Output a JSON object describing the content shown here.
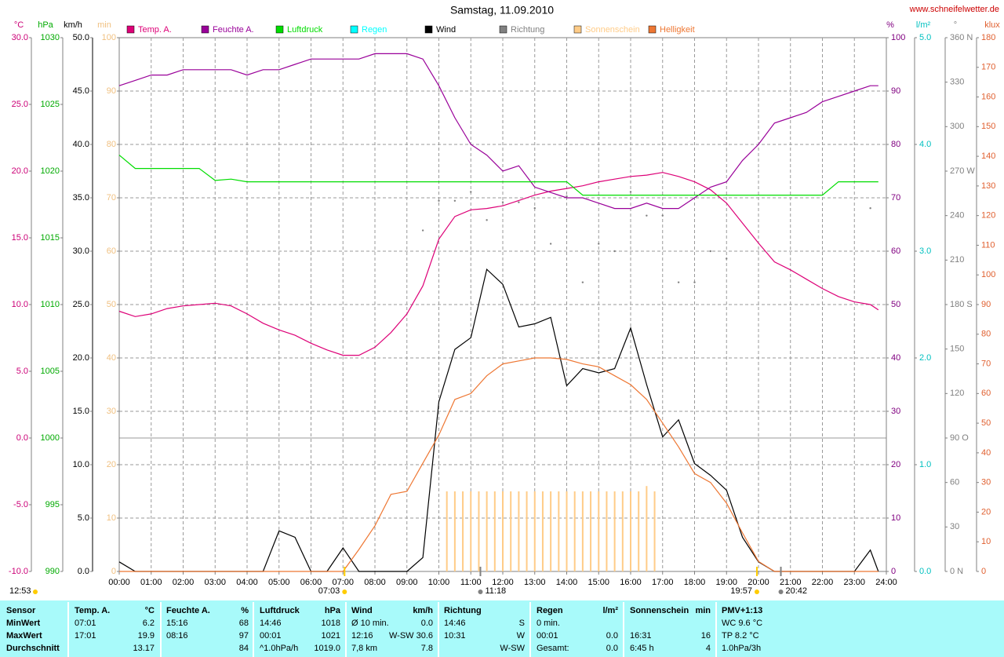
{
  "chart_data": {
    "type": "line",
    "title": "Samstag, 11.09.2010",
    "source": "www.schneifelwetter.de",
    "day_length": "12:53",
    "grid": true,
    "grid_axis": "%",
    "xlim": [
      0,
      24
    ],
    "xticks": [
      {
        "value": 0,
        "label": "00:00"
      },
      {
        "value": 1,
        "label": "01:00"
      },
      {
        "value": 2,
        "label": "02:00"
      },
      {
        "value": 3,
        "label": "03:00"
      },
      {
        "value": 4,
        "label": "04:00"
      },
      {
        "value": 5,
        "label": "05:00"
      },
      {
        "value": 6,
        "label": "06:00"
      },
      {
        "value": 7,
        "label": "07:00"
      },
      {
        "value": 8,
        "label": "08:00"
      },
      {
        "value": 9,
        "label": "09:00"
      },
      {
        "value": 10,
        "label": "10:00"
      },
      {
        "value": 11,
        "label": "11:00"
      },
      {
        "value": 12,
        "label": "12:00"
      },
      {
        "value": 13,
        "label": "13:00"
      },
      {
        "value": 14,
        "label": "14:00"
      },
      {
        "value": 15,
        "label": "15:00"
      },
      {
        "value": 16,
        "label": "16:00"
      },
      {
        "value": 17,
        "label": "17:00"
      },
      {
        "value": 18,
        "label": "18:00"
      },
      {
        "value": 19,
        "label": "19:00"
      },
      {
        "value": 20,
        "label": "20:00"
      },
      {
        "value": 21,
        "label": "21:00"
      },
      {
        "value": 22,
        "label": "22:00"
      },
      {
        "value": 23,
        "label": "23:00"
      },
      {
        "value": 24,
        "label": "24:00"
      }
    ],
    "axes": [
      {
        "unit": "°C",
        "color": "#cc0077",
        "lim": [
          -10,
          30
        ],
        "ticks": [
          {
            "value": -10,
            "label": "-10.0"
          },
          {
            "value": -5,
            "label": "-5.0"
          },
          {
            "value": 0,
            "label": "0.0"
          },
          {
            "value": 5,
            "label": "5.0"
          },
          {
            "value": 10,
            "label": "10.0"
          },
          {
            "value": 15,
            "label": "15.0"
          },
          {
            "value": 20,
            "label": "20.0"
          },
          {
            "value": 25,
            "label": "25.0"
          },
          {
            "value": 30,
            "label": "30.0"
          }
        ]
      },
      {
        "unit": "hPa",
        "color": "#00aa00",
        "lim": [
          990,
          1030
        ],
        "ticks": [
          990,
          995,
          1000,
          1005,
          1010,
          1015,
          1020,
          1025,
          1030
        ]
      },
      {
        "unit": "km/h",
        "color": "#000000",
        "lim": [
          0,
          50
        ],
        "ticks": [
          {
            "value": 0,
            "label": "0.0"
          },
          {
            "value": 5,
            "label": "5.0"
          },
          {
            "value": 10,
            "label": "10.0"
          },
          {
            "value": 15,
            "label": "15.0"
          },
          {
            "value": 20,
            "label": "20.0"
          },
          {
            "value": 25,
            "label": "25.0"
          },
          {
            "value": 30,
            "label": "30.0"
          },
          {
            "value": 35,
            "label": "35.0"
          },
          {
            "value": 40,
            "label": "40.0"
          },
          {
            "value": 45,
            "label": "45.0"
          },
          {
            "value": 50,
            "label": "50.0"
          }
        ]
      },
      {
        "unit": "min",
        "color": "#f0c080",
        "lim": [
          0,
          100
        ],
        "ticks": [
          0,
          10,
          20,
          30,
          40,
          50,
          60,
          70,
          80,
          90,
          100
        ]
      },
      {
        "unit": "%",
        "color": "#800080",
        "lim": [
          0,
          100
        ],
        "ticks": [
          0,
          10,
          20,
          30,
          40,
          50,
          60,
          70,
          80,
          90,
          100
        ]
      },
      {
        "unit": "l/m²",
        "color": "#00c0c0",
        "lim": [
          0,
          5
        ],
        "ticks": [
          {
            "value": 0,
            "label": "0.0"
          },
          {
            "value": 1,
            "label": "1.0"
          },
          {
            "value": 2,
            "label": "2.0"
          },
          {
            "value": 3,
            "label": "3.0"
          },
          {
            "value": 4,
            "label": "4.0"
          },
          {
            "value": 5,
            "label": "5.0"
          }
        ]
      },
      {
        "unit": "°",
        "color": "#808080",
        "lim": [
          0,
          360
        ],
        "ticks": [
          {
            "value": 0,
            "label": "0 N"
          },
          30,
          60,
          {
            "value": 90,
            "label": "90 O"
          },
          120,
          150,
          {
            "value": 180,
            "label": "180 S"
          },
          210,
          240,
          {
            "value": 270,
            "label": "270 W"
          },
          300,
          330,
          {
            "value": 360,
            "label": "360 N"
          }
        ]
      },
      {
        "unit": "klux",
        "color": "#e06030",
        "lim": [
          0,
          180
        ],
        "ticks": [
          0,
          10,
          20,
          30,
          40,
          50,
          60,
          70,
          80,
          90,
          100,
          110,
          120,
          130,
          140,
          150,
          160,
          170,
          180
        ]
      }
    ],
    "x": [
      0,
      0.5,
      1,
      1.5,
      2,
      2.5,
      3,
      3.5,
      4,
      4.5,
      5,
      5.5,
      6,
      6.5,
      7,
      7.5,
      8,
      8.5,
      9,
      9.5,
      10,
      10.5,
      11,
      11.5,
      12,
      12.5,
      13,
      13.5,
      14,
      14.5,
      15,
      15.5,
      16,
      16.5,
      17,
      17.5,
      18,
      18.5,
      19,
      19.5,
      20,
      20.5,
      21,
      21.5,
      22,
      22.5,
      23,
      23.5,
      23.75
    ],
    "series": [
      {
        "name": "Temp. A.",
        "color": "#dd0077",
        "axis": "°C",
        "values": [
          9.5,
          9.1,
          9.3,
          9.7,
          9.9,
          10.0,
          10.1,
          9.9,
          9.3,
          8.6,
          8.1,
          7.7,
          7.1,
          6.6,
          6.2,
          6.2,
          6.8,
          7.9,
          9.3,
          11.4,
          14.9,
          16.6,
          17.1,
          17.2,
          17.4,
          17.8,
          18.2,
          18.5,
          18.7,
          18.9,
          19.2,
          19.4,
          19.6,
          19.7,
          19.9,
          19.6,
          19.2,
          18.6,
          17.6,
          16.1,
          14.6,
          13.2,
          12.6,
          11.9,
          11.2,
          10.6,
          10.2,
          10.0,
          9.6
        ]
      },
      {
        "name": "Feuchte A.",
        "color": "#990099",
        "axis": "%",
        "values": [
          91,
          92,
          93,
          93,
          94,
          94,
          94,
          94,
          93,
          94,
          94,
          95,
          96,
          96,
          96,
          96,
          97,
          97,
          97,
          96,
          91,
          85,
          80,
          78,
          75,
          76,
          72,
          71,
          70,
          70,
          69,
          68,
          68,
          69,
          68,
          68,
          70,
          72,
          73,
          77,
          80,
          84,
          85,
          86,
          88,
          89,
          90,
          91,
          91
        ]
      },
      {
        "name": "Luftdruck",
        "color": "#00dd00",
        "axis": "hPa",
        "values": [
          1021.2,
          1020.2,
          1020.2,
          1020.2,
          1020.2,
          1020.2,
          1019.3,
          1019.4,
          1019.2,
          1019.2,
          1019.2,
          1019.2,
          1019.2,
          1019.2,
          1019.2,
          1019.2,
          1019.2,
          1019.2,
          1019.2,
          1019.2,
          1019.2,
          1019.2,
          1019.2,
          1019.2,
          1019.2,
          1019.2,
          1019.2,
          1019.2,
          1019.2,
          1018.2,
          1018.2,
          1018.2,
          1018.2,
          1018.2,
          1018.2,
          1018.2,
          1018.2,
          1018.2,
          1018.2,
          1018.2,
          1018.2,
          1018.2,
          1018.2,
          1018.2,
          1018.2,
          1019.2,
          1019.2,
          1019.2,
          1019.2
        ]
      },
      {
        "name": "Regen",
        "color": "#00ffff",
        "axis": "l/m²",
        "x": [],
        "values": []
      },
      {
        "name": "Wind",
        "color": "#000000",
        "axis": "km/h",
        "values": [
          0.9,
          0,
          0,
          0,
          0,
          0,
          0,
          0,
          0,
          0,
          3.8,
          3.2,
          0,
          0,
          2.2,
          0,
          0,
          0,
          0,
          1.3,
          15.9,
          20.8,
          21.9,
          28.3,
          26.9,
          22.9,
          23.2,
          23.8,
          17.4,
          19.0,
          18.6,
          19.0,
          22.8,
          17.5,
          12.6,
          14.2,
          10.1,
          9.0,
          7.6,
          3.2,
          0.9,
          0,
          0,
          0,
          0,
          0,
          0,
          2.0,
          0
        ]
      },
      {
        "name": "Richtung",
        "color": "#808080",
        "axis": "°",
        "type": "scatter",
        "x": [
          9.5,
          10,
          10.5,
          11,
          11.5,
          12,
          12.5,
          13,
          13.5,
          14,
          14.5,
          15,
          15.5,
          16,
          16.5,
          17,
          17.5,
          18,
          18.5,
          19,
          23.5
        ],
        "values": [
          230,
          250,
          250,
          256,
          237,
          249,
          249,
          245,
          221,
          253,
          195,
          221,
          216,
          256,
          240,
          240,
          195,
          195,
          216,
          211,
          245
        ]
      },
      {
        "name": "Sonnenschein",
        "color": "#ffcc88",
        "axis": "min",
        "type": "bar",
        "x": [
          10.25,
          10.5,
          10.75,
          11,
          11.25,
          11.5,
          11.75,
          12,
          12.25,
          12.5,
          12.75,
          13,
          13.25,
          13.5,
          13.75,
          14,
          14.25,
          14.5,
          14.75,
          15,
          15.25,
          15.5,
          15.75,
          16,
          16.25,
          16.5,
          16.75
        ],
        "values": [
          15,
          15,
          15,
          15,
          15,
          15,
          15,
          15,
          15,
          15,
          15,
          15,
          15,
          15,
          15,
          15,
          15,
          15,
          15,
          15,
          15,
          15,
          15,
          15,
          15,
          16,
          15
        ]
      },
      {
        "name": "Helligkeit",
        "color": "#ee7733",
        "axis": "klux",
        "values": [
          0,
          0,
          0,
          0,
          0,
          0,
          0,
          0,
          0,
          0,
          0,
          0,
          0,
          0,
          0,
          7.4,
          15.4,
          26,
          27,
          36.5,
          46,
          58,
          60,
          66,
          70,
          71,
          72,
          72,
          71.5,
          70,
          69,
          66,
          63,
          58,
          50,
          42,
          33,
          30,
          23,
          13,
          3.4,
          0,
          0,
          0,
          0,
          0,
          0,
          0,
          0
        ]
      }
    ],
    "annotations": [
      {
        "label": "07:03",
        "x": 7.05,
        "color": "#ffcc00",
        "align": "end"
      },
      {
        "label": "11:18",
        "x": 11.3,
        "color": "#808080",
        "align": "start"
      },
      {
        "label": "19:57",
        "x": 19.95,
        "color": "#ffcc00",
        "align": "end"
      },
      {
        "label": "20:42",
        "x": 20.7,
        "color": "#808080",
        "align": "start"
      }
    ]
  },
  "table": {
    "columns": [
      {
        "name": "Sensor"
      },
      {
        "name": "Temp. A.",
        "unit": "°C"
      },
      {
        "name": "Feuchte A.",
        "unit": "%"
      },
      {
        "name": "Luftdruck",
        "unit": "hPa"
      },
      {
        "name": "Wind",
        "unit": "km/h"
      },
      {
        "name": "Richtung"
      },
      {
        "name": "Regen",
        "unit": "l/m²"
      },
      {
        "name": "Sonnenschein",
        "unit": "min"
      },
      {
        "name": "PMV+1:13"
      }
    ],
    "rows": [
      {
        "label": "MinWert",
        "cells": [
          [
            "07:01",
            "6.2"
          ],
          [
            "15:16",
            "68"
          ],
          [
            "14:46",
            "1018"
          ],
          [
            "Ø 10 min.",
            "0.0"
          ],
          [
            "14:46",
            "S"
          ],
          [
            "0 min.",
            null
          ],
          [
            null,
            null
          ],
          [
            "WC 9.6 °C",
            null
          ]
        ]
      },
      {
        "label": "MaxWert",
        "cells": [
          [
            "17:01",
            "19.9"
          ],
          [
            "08:16",
            "97"
          ],
          [
            "00:01",
            "1021"
          ],
          [
            "12:16",
            "W-SW 30.6"
          ],
          [
            "10:31",
            "W"
          ],
          [
            "00:01",
            "0.0"
          ],
          [
            "16:31",
            "16"
          ],
          [
            "TP 8.2 °C",
            null
          ]
        ]
      },
      {
        "label": "Durchschnitt",
        "cells": [
          [
            null,
            "13.17"
          ],
          [
            null,
            "84"
          ],
          [
            "^1.0hPa/h",
            "1019.0"
          ],
          [
            "7,8 km",
            "7.8"
          ],
          [
            null,
            "W-SW"
          ],
          [
            "Gesamt:",
            "0.0"
          ],
          [
            "6:45 h",
            "4"
          ],
          [
            "1.0hPa/3h",
            null
          ]
        ]
      }
    ]
  }
}
